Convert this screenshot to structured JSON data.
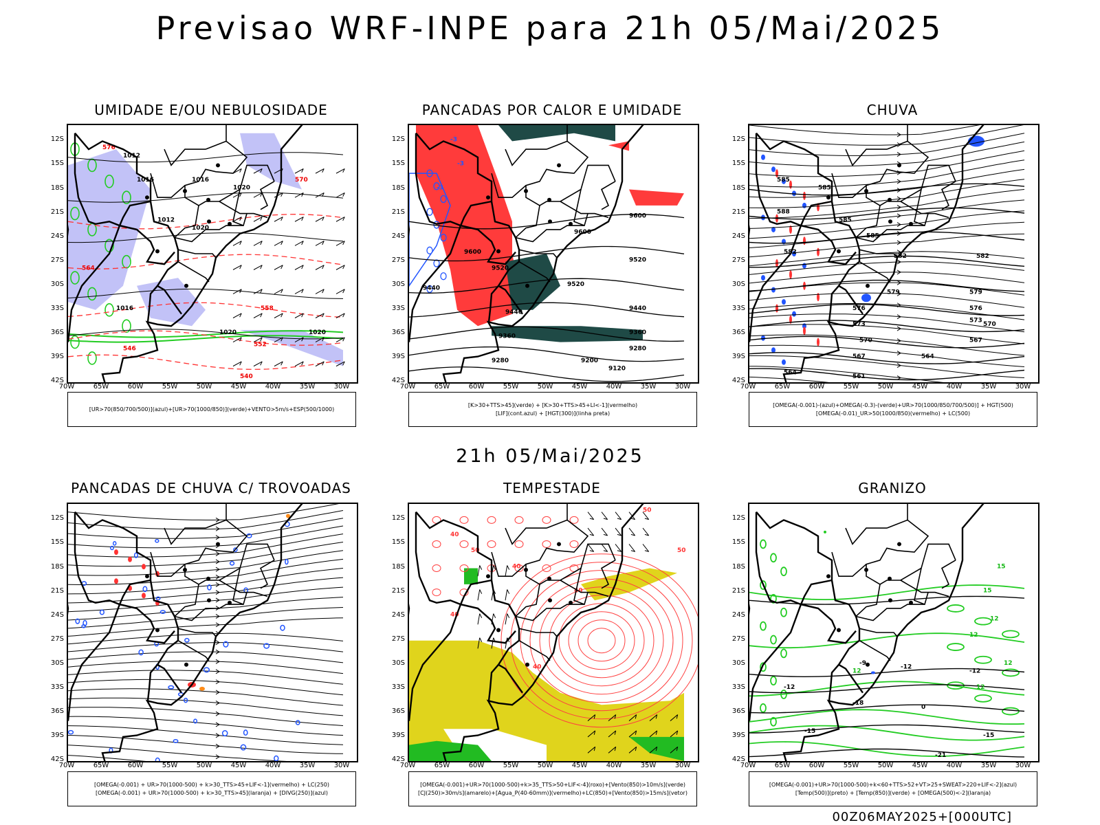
{
  "title": "Previsao WRF-INPE  para 21h 05/Mai/2025",
  "subtitle": "21h 05/Mai/2025",
  "footer": "00Z06MAY2025+[000UTC]",
  "axes": {
    "lat_labels": [
      "12S",
      "15S",
      "18S",
      "21S",
      "24S",
      "27S",
      "30S",
      "33S",
      "36S",
      "39S",
      "42S"
    ],
    "lon_labels": [
      "70W",
      "65W",
      "60W",
      "55W",
      "50W",
      "45W",
      "40W",
      "35W",
      "30W"
    ]
  },
  "colors": {
    "humid_blue": "#b3b3f5",
    "green": "#22cc22",
    "red": "#ff3b3b",
    "teal": "#1f4a46",
    "yellow": "#e0d41c",
    "blue": "#2255ff",
    "orange": "#ff8c1a"
  },
  "panels": [
    {
      "id": "umidade",
      "title": "UMIDADE E/OU NEBULOSIDADE",
      "legend": [
        "[UR>70(850/700/500)](azul)+[UR>70(1000/850)](verde)+VENTO>5m/s+ESP(500/1000)"
      ],
      "contour_labels": [
        "1012",
        "1016",
        "1016",
        "1012",
        "1020",
        "1020",
        "1016",
        "1020",
        "1020",
        "570",
        "576",
        "564",
        "558",
        "552",
        "546",
        "540"
      ]
    },
    {
      "id": "pancadas-calor",
      "title": "PANCADAS POR CALOR E UMIDADE",
      "legend": [
        "[K>30+TTS>45](verde) + [K>30+TTS>45+LI<-1](vermelho)",
        "[LIF](cont.azul) + [HGT(300)](linha preta)"
      ],
      "contour_labels": [
        "9600",
        "9600",
        "9600",
        "9520",
        "9520",
        "9520",
        "9440",
        "9440",
        "9440",
        "9360",
        "9360",
        "9280",
        "9280",
        "9200",
        "9120",
        "-3",
        "-3",
        "-3"
      ]
    },
    {
      "id": "chuva",
      "title": "CHUVA",
      "legend": [
        "[OMEGA(-0.001)-(azul)+OMEGA(-0.3)-(verde)+UR>70(1000/850/700/500)] + HGT(500)",
        "[OMEGA(-0.01)_UR>50(1000/850)(vermelho) + LC(500)"
      ],
      "contour_labels": [
        "585",
        "585",
        "588",
        "585",
        "585",
        "582",
        "582",
        "582",
        "579",
        "579",
        "576",
        "576",
        "573",
        "573",
        "570",
        "570",
        "567",
        "567",
        "564",
        "564",
        "561"
      ]
    },
    {
      "id": "pancadas-trovoadas",
      "title": "PANCADAS DE CHUVA C/ TROVOADAS",
      "legend": [
        "[OMEGA(-0.001) + UR>70(1000-500) + k>30_TTS>45+LIF<-1](vermelho) + LC(250)",
        "[OMEGA(-0.001) + UR>70(1000-500) + k>30_TTS>45](laranja) + [DIVG(250)](azul)"
      ],
      "contour_labels": []
    },
    {
      "id": "tempestade",
      "title": "TEMPESTADE",
      "legend": [
        "[OMEGA(-0.001)+UR>70(1000-500)+k>35_TTS>50+LIF<-4](roxo)+[Vento(850)>10m/s](verde)",
        "[CJ(250)>30m/s](amarelo)+[Agua_P(40-60mm)](vermelho)+LC(850)+[Vento(850)>15m/s](vetor)"
      ],
      "contour_labels": [
        "40",
        "50",
        "40",
        "50",
        "50",
        "40",
        "40",
        "40"
      ]
    },
    {
      "id": "granizo",
      "title": "GRANIZO",
      "legend": [
        "[OMEGA(-0.001)+UR>70(1000-500)+k<60+TTS>52+VT>25+SWEAT>220+LIF<-2](azul)",
        "[Temp(500)](preto) + [Temp(850)](verde) + [OMEGA(500)<-2](laranja)"
      ],
      "contour_labels": [
        "15",
        "15",
        "12",
        "12",
        "12",
        "12",
        "12",
        "-9",
        "-12",
        "-12",
        "-12",
        "-15",
        "-15",
        "-18",
        "-21",
        "0"
      ]
    }
  ]
}
